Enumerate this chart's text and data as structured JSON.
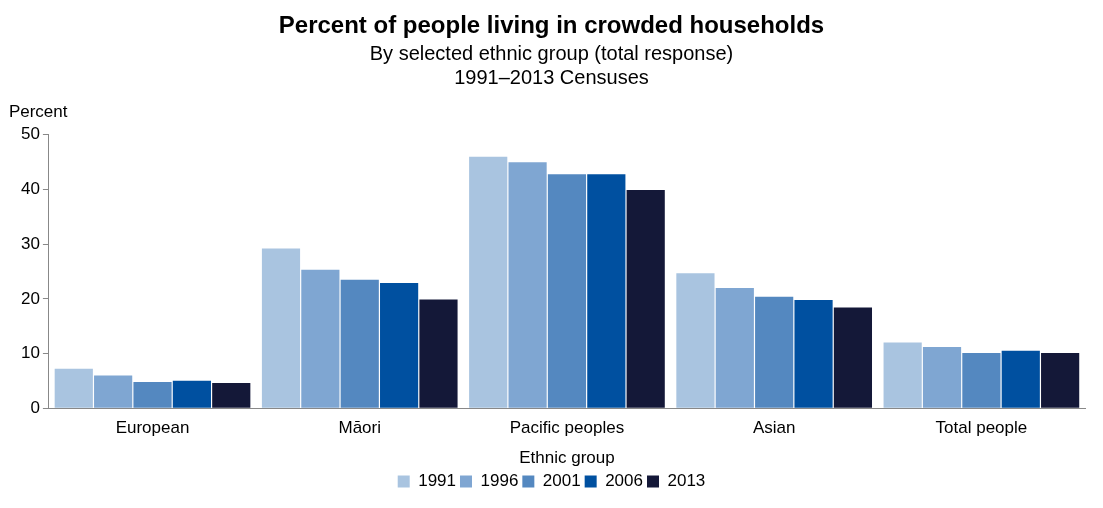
{
  "chart_data": {
    "type": "bar",
    "title": "Percent of people living in crowded households",
    "subtitle": "By selected ethnic group (total response)\n1991–2013 Censuses",
    "xlabel": "Ethnic group",
    "ylabel": "Percent",
    "categories": [
      "European",
      "Māori",
      "Pacific peoples",
      "Asian",
      "Total people"
    ],
    "series": [
      {
        "name": "1991",
        "color": "#a9c4e0",
        "values": [
          7.2,
          29.2,
          46.0,
          24.7,
          12.0
        ]
      },
      {
        "name": "1996",
        "color": "#7fa6d2",
        "values": [
          6.0,
          25.3,
          45.0,
          22.0,
          11.2
        ]
      },
      {
        "name": "2001",
        "color": "#5488c0",
        "values": [
          4.8,
          23.5,
          42.8,
          20.4,
          10.1
        ]
      },
      {
        "name": "2006",
        "color": "#0050a0",
        "values": [
          5.0,
          22.9,
          42.8,
          19.8,
          10.5
        ]
      },
      {
        "name": "2013",
        "color": "#141838",
        "values": [
          4.6,
          19.9,
          39.9,
          18.4,
          10.1
        ]
      }
    ],
    "ylim": [
      0,
      50
    ],
    "yticks": [
      0,
      10,
      20,
      30,
      40,
      50
    ],
    "grid": false,
    "legend": "bottom"
  }
}
